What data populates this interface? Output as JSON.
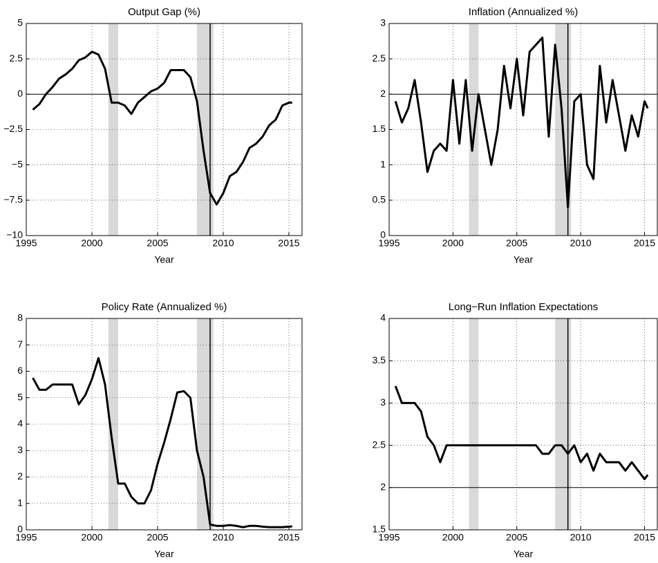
{
  "chart_data": [
    {
      "type": "line",
      "title": "Output Gap (%)",
      "xlabel": "Year",
      "color": "#000000",
      "grid": true,
      "x": [
        1995.5,
        1996,
        1996.5,
        1997,
        1997.5,
        1998,
        1998.5,
        1999,
        1999.5,
        2000,
        2000.5,
        2001,
        2001.5,
        2002,
        2002.5,
        2003,
        2003.5,
        2004,
        2004.5,
        2005,
        2005.5,
        2006,
        2006.5,
        2007,
        2007.5,
        2008,
        2008.5,
        2009,
        2009.5,
        2010,
        2010.5,
        2011,
        2011.5,
        2012,
        2012.5,
        2013,
        2013.5,
        2014,
        2014.5,
        2015,
        2015.25
      ],
      "values": [
        -1.1,
        -0.7,
        0,
        0.5,
        1.1,
        1.4,
        1.8,
        2.4,
        2.6,
        3.0,
        2.8,
        1.8,
        -0.6,
        -0.6,
        -0.8,
        -1.4,
        -0.6,
        -0.2,
        0.2,
        0.4,
        0.8,
        1.7,
        1.7,
        1.7,
        1.2,
        -0.5,
        -4,
        -7,
        -7.8,
        -7,
        -5.8,
        -5.5,
        -4.8,
        -3.8,
        -3.5,
        -3.0,
        -2.2,
        -1.8,
        -0.8,
        -0.6,
        -0.6
      ],
      "xlim": [
        1995,
        2016
      ],
      "xticks": [
        1995,
        2000,
        2005,
        2010,
        2015
      ],
      "ylim": [
        -10,
        5
      ],
      "yticks": [
        5,
        {
          "value": 2.5,
          "label": "2.5"
        },
        0,
        {
          "value": -2.5,
          "label": "−2.5"
        },
        {
          "value": -5,
          "label": "−5"
        },
        {
          "value": -7.5,
          "label": "−7.5"
        },
        {
          "value": -10,
          "label": "−10"
        }
      ],
      "hline": 0,
      "vline": 2009,
      "shaded": [
        [
          2001.25,
          2002
        ],
        [
          2008,
          2009.25
        ]
      ]
    },
    {
      "type": "line",
      "title": "Inflation (Annualized %)",
      "xlabel": "Year",
      "color": "#000000",
      "grid": true,
      "x": [
        1995.5,
        1996,
        1996.5,
        1997,
        1997.5,
        1998,
        1998.5,
        1999,
        1999.5,
        2000,
        2000.5,
        2001,
        2001.5,
        2002,
        2002.5,
        2003,
        2003.5,
        2004,
        2004.5,
        2005,
        2005.5,
        2006,
        2006.5,
        2007,
        2007.5,
        2008,
        2008.5,
        2009,
        2009.5,
        2010,
        2010.5,
        2011,
        2011.5,
        2012,
        2012.5,
        2013,
        2013.5,
        2014,
        2014.5,
        2015,
        2015.25
      ],
      "values": [
        1.9,
        1.6,
        1.8,
        2.2,
        1.6,
        0.9,
        1.2,
        1.3,
        1.2,
        2.2,
        1.3,
        2.2,
        1.2,
        2.0,
        1.5,
        1.0,
        1.5,
        2.4,
        1.8,
        2.5,
        1.7,
        2.6,
        2.7,
        2.8,
        1.4,
        2.7,
        1.8,
        0.4,
        1.9,
        2.0,
        1.0,
        0.8,
        2.4,
        1.6,
        2.2,
        1.7,
        1.2,
        1.7,
        1.4,
        1.9,
        1.8
      ],
      "xlim": [
        1995,
        2016
      ],
      "xticks": [
        1995,
        2000,
        2005,
        2010,
        2015
      ],
      "ylim": [
        0,
        3
      ],
      "yticks": [
        0,
        0.5,
        1,
        1.5,
        2,
        2.5,
        3
      ],
      "hline": 2,
      "vline": 2009,
      "shaded": [
        [
          2001.25,
          2002
        ],
        [
          2008,
          2009.25
        ]
      ]
    },
    {
      "type": "line",
      "title": "Policy Rate (Annualized %)",
      "xlabel": "Year",
      "color": "#000000",
      "grid": true,
      "x": [
        1995.5,
        1996,
        1996.5,
        1997,
        1997.5,
        1998,
        1998.5,
        1999,
        1999.5,
        2000,
        2000.5,
        2001,
        2001.5,
        2002,
        2002.5,
        2003,
        2003.5,
        2004,
        2004.5,
        2005,
        2005.5,
        2006,
        2006.5,
        2007,
        2007.5,
        2008,
        2008.5,
        2009,
        2009.5,
        2010,
        2010.5,
        2011,
        2011.5,
        2012,
        2012.5,
        2013,
        2013.5,
        2014,
        2014.5,
        2015,
        2015.25
      ],
      "values": [
        5.75,
        5.3,
        5.3,
        5.5,
        5.5,
        5.5,
        5.5,
        4.75,
        5.1,
        5.7,
        6.5,
        5.5,
        3.5,
        1.75,
        1.75,
        1.25,
        1.0,
        1.0,
        1.5,
        2.5,
        3.3,
        4.2,
        5.2,
        5.25,
        5.0,
        3.0,
        2.0,
        0.2,
        0.15,
        0.15,
        0.18,
        0.15,
        0.1,
        0.15,
        0.15,
        0.12,
        0.1,
        0.1,
        0.1,
        0.12,
        0.13
      ],
      "xlim": [
        1995,
        2016
      ],
      "xticks": [
        1995,
        2000,
        2005,
        2010,
        2015
      ],
      "ylim": [
        0,
        8
      ],
      "yticks": [
        0,
        1,
        2,
        3,
        4,
        5,
        6,
        7,
        8
      ],
      "vline": 2009,
      "shaded": [
        [
          2001.25,
          2002
        ],
        [
          2008,
          2009.25
        ]
      ]
    },
    {
      "type": "line",
      "title": "Long−Run Inflation Expectations",
      "xlabel": "Year",
      "color": "#000000",
      "grid": true,
      "x": [
        1995.5,
        1996,
        1996.5,
        1997,
        1997.5,
        1998,
        1998.5,
        1999,
        1999.5,
        2000,
        2000.5,
        2001,
        2001.5,
        2002,
        2002.5,
        2003,
        2003.5,
        2004,
        2004.5,
        2005,
        2005.5,
        2006,
        2006.5,
        2007,
        2007.5,
        2008,
        2008.5,
        2009,
        2009.5,
        2010,
        2010.5,
        2011,
        2011.5,
        2012,
        2012.5,
        2013,
        2013.5,
        2014,
        2014.5,
        2015,
        2015.25
      ],
      "values": [
        3.2,
        3.0,
        3.0,
        3.0,
        2.9,
        2.6,
        2.5,
        2.3,
        2.5,
        2.5,
        2.5,
        2.5,
        2.5,
        2.5,
        2.5,
        2.5,
        2.5,
        2.5,
        2.5,
        2.5,
        2.5,
        2.5,
        2.5,
        2.4,
        2.4,
        2.5,
        2.5,
        2.4,
        2.5,
        2.3,
        2.4,
        2.2,
        2.4,
        2.3,
        2.3,
        2.3,
        2.2,
        2.3,
        2.2,
        2.1,
        2.15
      ],
      "xlim": [
        1995,
        2016
      ],
      "xticks": [
        1995,
        2000,
        2005,
        2010,
        2015
      ],
      "ylim": [
        1.5,
        4
      ],
      "yticks": [
        1.5,
        2,
        2.5,
        3,
        3.5,
        4
      ],
      "hline": 2,
      "vline": 2009,
      "shaded": [
        [
          2001.25,
          2002
        ],
        [
          2008,
          2009.25
        ]
      ]
    }
  ]
}
